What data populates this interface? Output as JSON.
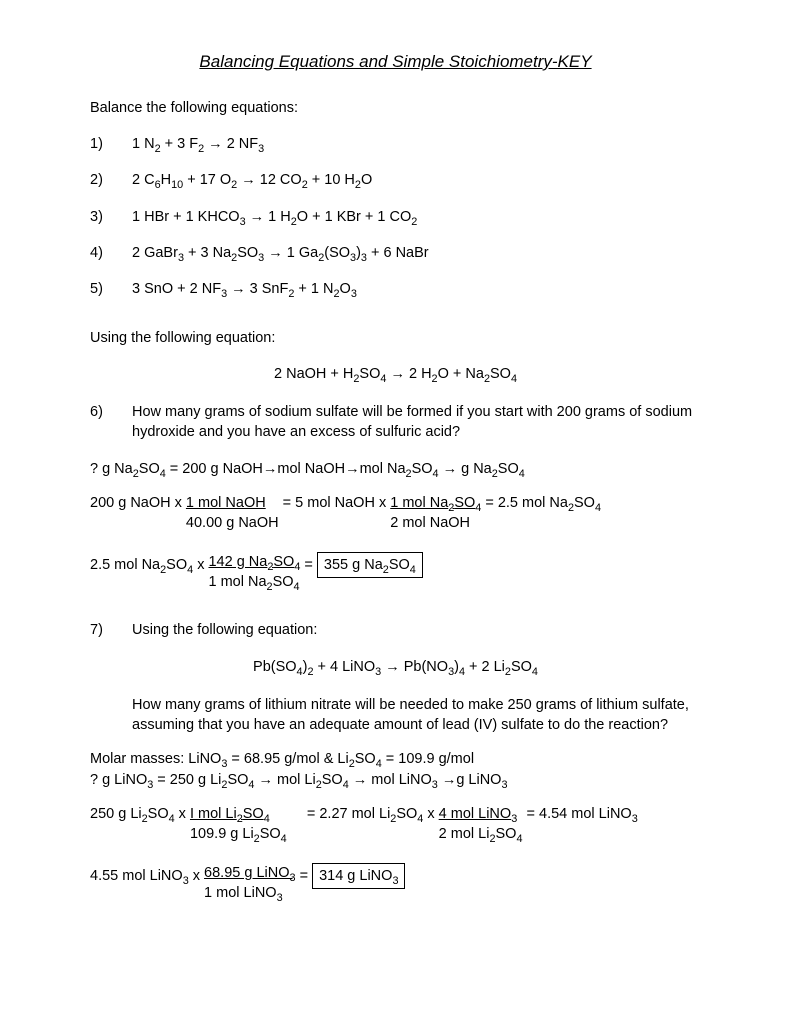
{
  "title": "Balancing Equations and Simple Stoichiometry-KEY",
  "balance_label": "Balance the following equations:",
  "equations": [
    {
      "num": "1)",
      "html": "1 N<sub>2</sub> + 3 F<sub>2</sub> → 2 NF<sub>3</sub>"
    },
    {
      "num": "2)",
      "html": "2 C<sub>6</sub>H<sub>10</sub> + 17 O<sub>2</sub> → 12 CO<sub>2</sub> + 10 H<sub>2</sub>O"
    },
    {
      "num": "3)",
      "html": "1 HBr + 1 KHCO<sub>3</sub> → 1 H<sub>2</sub>O + 1 KBr + 1 CO<sub>2</sub>"
    },
    {
      "num": "4)",
      "html": "2 GaBr<sub>3</sub> + 3 Na<sub>2</sub>SO<sub>3</sub> → 1 Ga<sub>2</sub>(SO<sub>3</sub>)<sub>3</sub> + 6 NaBr"
    },
    {
      "num": "5)",
      "html": "3 SnO + 2 NF<sub>3</sub> → 3 SnF<sub>2</sub> + 1 N<sub>2</sub>O<sub>3</sub>"
    }
  ],
  "using_label": "Using the following equation:",
  "q6_eq": "2 NaOH + H<sub>2</sub>SO<sub>4</sub> → 2 H<sub>2</sub>O + Na<sub>2</sub>SO<sub>4</sub>",
  "q6_num": "6)",
  "q6_text": "How many grams of sodium sulfate will be formed if you start with 200 grams of sodium hydroxide and you have an excess of sulfuric acid?",
  "q6_plan": "? g Na<sub>2</sub>SO<sub>4</sub> = 200 g NaOH→mol NaOH→mol Na<sub>2</sub>SO<sub>4</sub> → g Na<sub>2</sub>SO<sub>4</sub>",
  "q6_calc1_lead": "200 g NaOH x ",
  "q6_calc1_f1_top": "1 mol NaOH ",
  "q6_calc1_f1_bot": "40.00 g NaOH",
  "q6_calc1_mid": " = 5 mol NaOH  x  ",
  "q6_calc1_f2_top": "1 mol Na<sub>2</sub>SO<sub>4</sub>",
  "q6_calc1_f2_bot": "2 mol NaOH",
  "q6_calc1_tail": "  = 2.5 mol Na<sub>2</sub>SO<sub>4</sub>",
  "q6_calc2_lead": "2.5 mol Na<sub>2</sub>SO<sub>4</sub> x ",
  "q6_calc2_f_top": "142 g Na<sub>2</sub>SO<sub>4</sub> ",
  "q6_calc2_f_bot": "1 mol Na<sub>2</sub>SO<sub>4</sub>",
  "q6_calc2_eq": " = ",
  "q6_answer": "355 g Na<sub>2</sub>SO<sub>4</sub>",
  "q7_num": "7)",
  "q7_label": "Using the following equation:",
  "q7_eq": "Pb(SO<sub>4</sub>)<sub>2</sub> + 4 LiNO<sub>3</sub> → Pb(NO<sub>3</sub>)<sub>4</sub> + 2 Li<sub>2</sub>SO<sub>4</sub>",
  "q7_text": "How many grams of lithium nitrate will be needed to make 250 grams of lithium sulfate, assuming that you have an adequate amount of lead (IV) sulfate to do the reaction?",
  "q7_molar": "Molar masses: LiNO<sub>3</sub> = 68.95 g/mol  &  Li<sub>2</sub>SO<sub>4</sub> = 109.9 g/mol",
  "q7_plan": "? g LiNO<sub>3</sub> = 250 g Li<sub>2</sub>SO<sub>4</sub> → mol Li<sub>2</sub>SO<sub>4</sub> → mol LiNO<sub>3</sub> →g LiNO<sub>3</sub>",
  "q7_calc1_lead": "250 g Li<sub>2</sub>SO<sub>4</sub> x ",
  "q7_calc1_f1_top": "I mol Li<sub>2</sub>SO<sub>4</sub>",
  "q7_calc1_f1_bot": "109.9 g Li<sub>2</sub>SO<sub>4</sub>",
  "q7_calc1_mid": "     = 2.27 mol Li<sub>2</sub>SO<sub>4</sub> x ",
  "q7_calc1_f2_top": "4 mol LiNO<sub>3</sub>",
  "q7_calc1_f2_bot": "2 mol Li<sub>2</sub>SO<sub>4</sub>",
  "q7_calc1_tail": " = 4.54 mol LiNO<sub>3</sub>",
  "q7_calc2_lead": "4.55 mol LiNO<sub>3</sub> x ",
  "q7_calc2_f_top": "68.95 g LiNO<sub>3</sub> ",
  "q7_calc2_f_bot": "1 mol LiNO<sub>3</sub>",
  "q7_calc2_eq": " =  ",
  "q7_answer": "314 g LiNO<sub>3</sub>"
}
